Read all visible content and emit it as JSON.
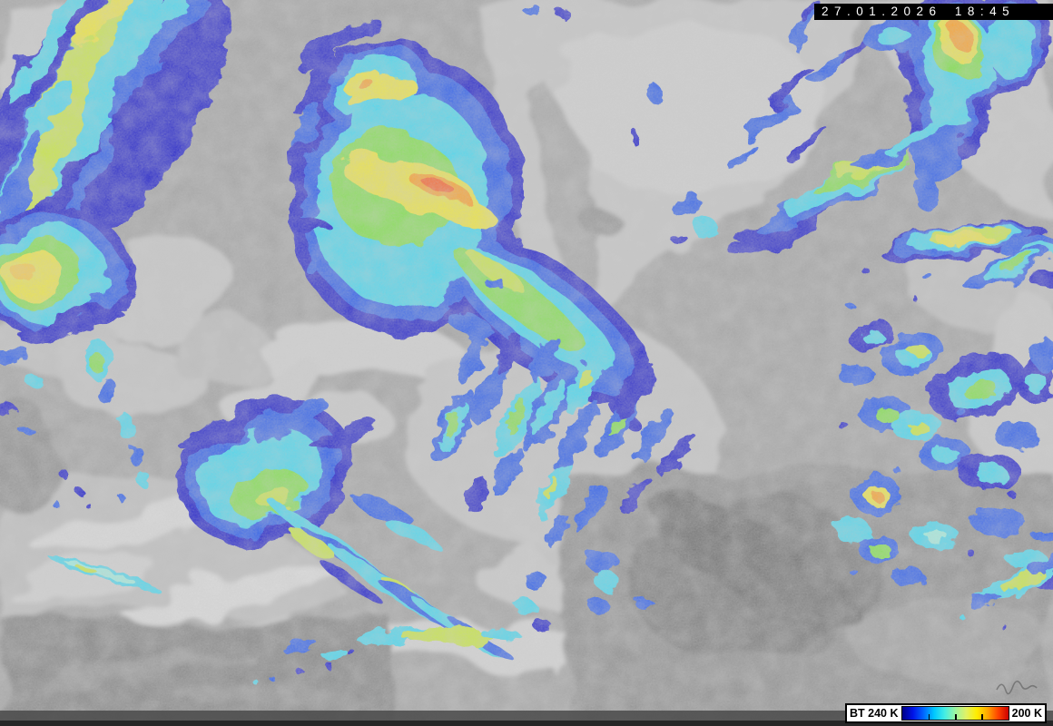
{
  "header": {
    "timestamp": "27.01.2026 18:45"
  },
  "legend": {
    "label_left": "BT 240 K",
    "label_right": "200 K",
    "gradient_stops": [
      "#000087",
      "#0013e8",
      "#0066ff",
      "#00c8ff",
      "#44eee4",
      "#9cf5a0",
      "#e0f266",
      "#ffee00",
      "#ffaa00",
      "#ff4400",
      "#cc0000"
    ],
    "tick_positions_pct": [
      25,
      50,
      75
    ]
  },
  "palette": {
    "deep-blue": "#1414cc",
    "blue": "#2457ee",
    "cyan": "#3fd9f2",
    "pale-cyan": "#9df2e2",
    "green": "#7fe24a",
    "yellow-green": "#c9e93f",
    "yellow": "#f0e83a",
    "yellow-orange": "#ffc928",
    "orange": "#ff9e1f",
    "red-orange": "#ff5512",
    "bar-bg": "#000000",
    "bar-fg": "#ffffff"
  }
}
